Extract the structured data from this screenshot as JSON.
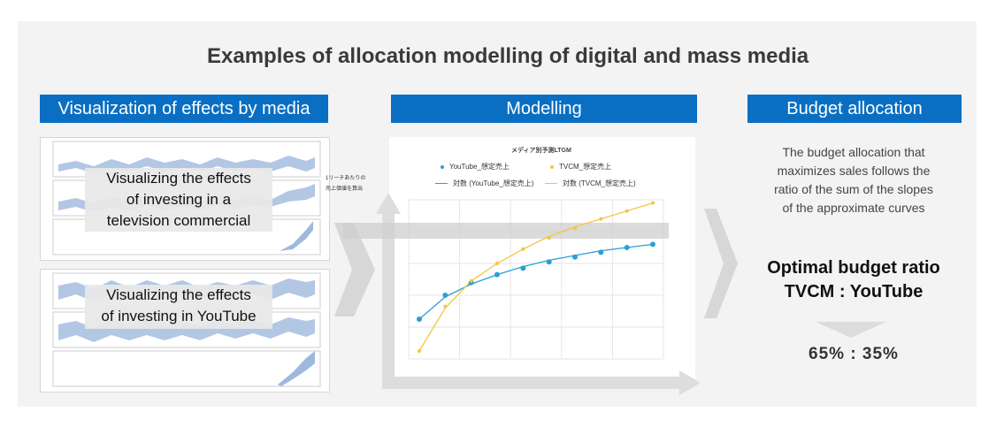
{
  "title": "Examples of allocation modelling of digital and mass media",
  "sections": {
    "visualization": {
      "header": "Visualization of effects by media",
      "tv_label_lines": [
        "Visualizing the effects",
        "of investing in a",
        "television commercial"
      ],
      "youtube_label_lines": [
        "Visualizing the effects",
        "of investing in YouTube"
      ]
    },
    "modelling": {
      "header": "Modelling",
      "chart_title": "メディア別予測LTGM",
      "note_lines": [
        "1リーチあたりの",
        "売上価値を算出"
      ]
    },
    "budget": {
      "header": "Budget allocation",
      "description_lines": [
        "The budget allocation that",
        "maximizes sales follows the",
        "ratio of the sum of the slopes",
        "of the approximate curves"
      ],
      "optimal_lines": [
        "Optimal budget ratio",
        "TVCM : YouTube"
      ],
      "ratio": "65% : 35%"
    }
  },
  "colors": {
    "header_blue": "#0a6fc2",
    "youtube": "#2a9fd6",
    "tvcm": "#f5c542",
    "band": "#9fb9dd"
  },
  "chart_data": {
    "type": "scatter",
    "title": "メディア別予測LTGM",
    "x": [
      1,
      2,
      3,
      4,
      5,
      6,
      7,
      8,
      9,
      10
    ],
    "series": [
      {
        "name": "YouTube_想定売上",
        "values": [
          0.25,
          0.4,
          0.48,
          0.53,
          0.57,
          0.61,
          0.64,
          0.67,
          0.7,
          0.72
        ]
      },
      {
        "name": "TVCM_想定売上",
        "values": [
          0.05,
          0.33,
          0.49,
          0.6,
          0.69,
          0.76,
          0.82,
          0.88,
          0.93,
          0.98
        ]
      },
      {
        "name": "対数 (YouTube_想定売上)",
        "values": [
          0.25,
          0.39,
          0.47,
          0.53,
          0.58,
          0.62,
          0.65,
          0.68,
          0.7,
          0.72
        ]
      },
      {
        "name": "対数 (TVCM_想定売上)",
        "values": [
          0.05,
          0.32,
          0.49,
          0.6,
          0.69,
          0.77,
          0.83,
          0.88,
          0.93,
          0.98
        ]
      }
    ],
    "grid": true,
    "legend": "top"
  }
}
